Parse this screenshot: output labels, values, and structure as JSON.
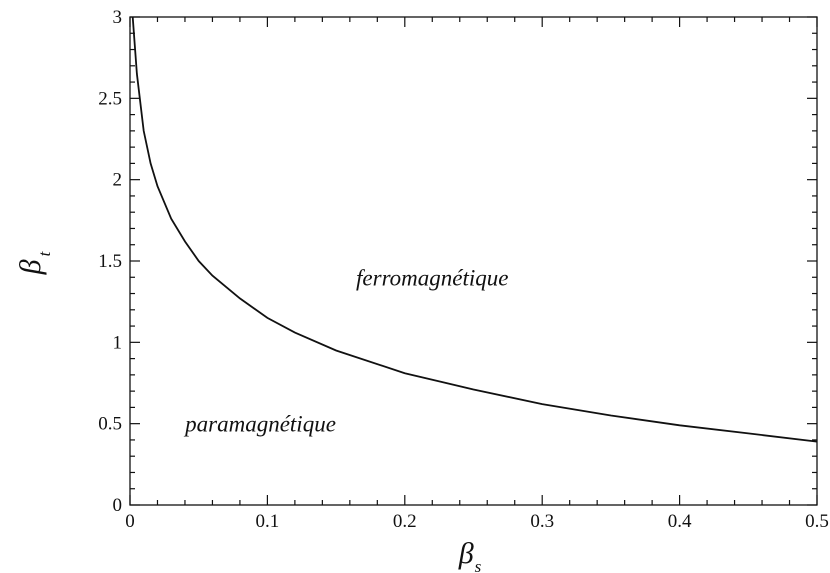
{
  "chart_data": {
    "type": "line",
    "title": "",
    "xlabel": {
      "symbol": "β",
      "subscript": "s"
    },
    "ylabel": {
      "symbol": "β",
      "subscript": "t"
    },
    "xlim": [
      0,
      0.5
    ],
    "ylim": [
      0,
      3
    ],
    "x_ticks": [
      "0",
      "0.1",
      "0.2",
      "0.3",
      "0.4",
      "0.5"
    ],
    "y_ticks": [
      "0",
      "0.5",
      "1",
      "1.5",
      "2",
      "2.5",
      "3"
    ],
    "grid": false,
    "series": [
      {
        "x": [
          0.002,
          0.005,
          0.01,
          0.015,
          0.02,
          0.03,
          0.04,
          0.05,
          0.06,
          0.08,
          0.1,
          0.12,
          0.15,
          0.2,
          0.25,
          0.3,
          0.35,
          0.4,
          0.45,
          0.5
        ],
        "y": [
          3.0,
          2.65,
          2.3,
          2.1,
          1.96,
          1.76,
          1.62,
          1.5,
          1.41,
          1.27,
          1.15,
          1.06,
          0.95,
          0.81,
          0.71,
          0.62,
          0.55,
          0.49,
          0.44,
          0.39
        ]
      }
    ],
    "annotations": [
      {
        "text": "ferromagnétique",
        "x": 0.22,
        "y": 1.4
      },
      {
        "text": "paramagnétique",
        "x": 0.095,
        "y": 0.5
      }
    ]
  }
}
